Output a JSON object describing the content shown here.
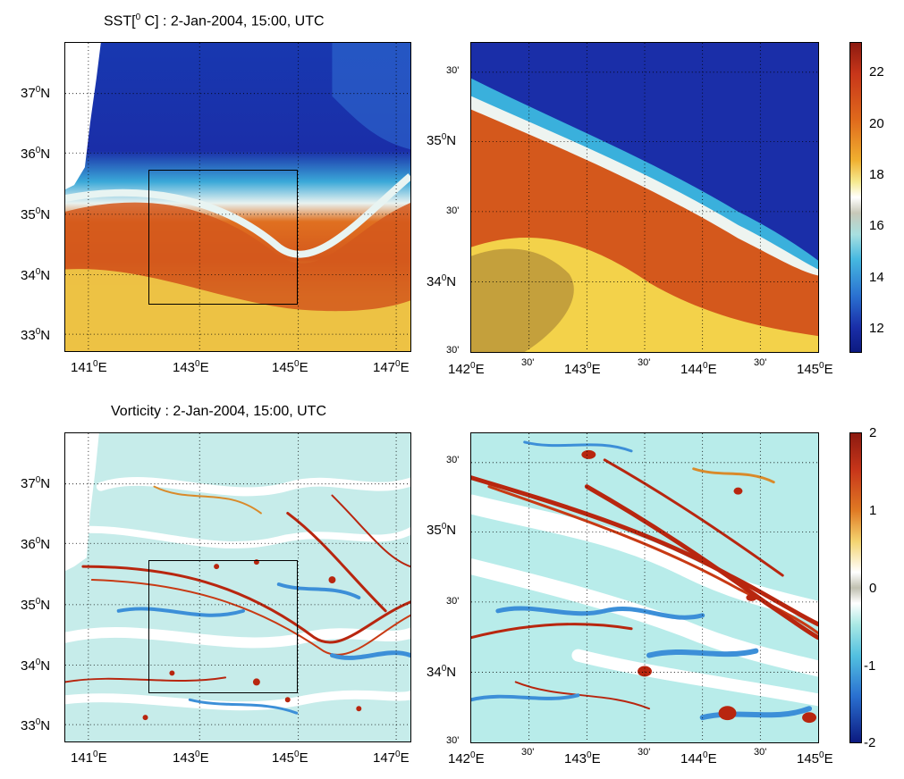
{
  "sst": {
    "title": "SST[",
    "title_sup": "0",
    "title_rest": " C] : 2-Jan-2004, 15:00, UTC",
    "colorbar_ticks": [
      "22",
      "20",
      "18",
      "16",
      "14",
      "12"
    ]
  },
  "vort": {
    "title": "Vorticity : 2-Jan-2004, 15:00, UTC",
    "colorbar_ticks": [
      "2",
      "1",
      "0",
      "-1",
      "-2"
    ]
  },
  "left_lat_labels": [
    "37",
    "36",
    "35",
    "34",
    "33"
  ],
  "left_lon_labels": [
    "141",
    "143",
    "145",
    "147"
  ],
  "right_lat_labels": [
    "35",
    "34"
  ],
  "right_lon_labels": [
    "142",
    "143",
    "144",
    "145"
  ],
  "minute_label": "30'",
  "deg": "0",
  "N": "N",
  "E": "E",
  "colors": {
    "sst_cold": "#1a2ea8",
    "sst_warm": "#d4581c",
    "sst_hot": "#f3d24a",
    "vort_pos": "#b8260f",
    "vort_neg": "#3c8fd8",
    "vort_zero": "#a8e4e0"
  }
}
